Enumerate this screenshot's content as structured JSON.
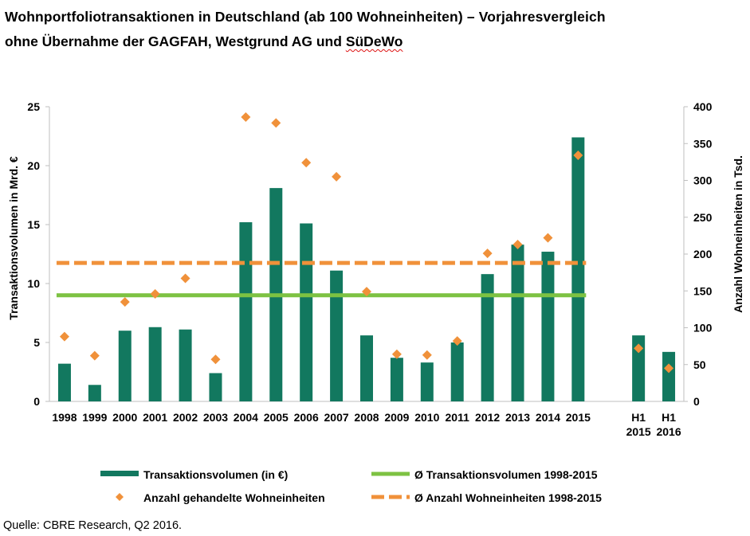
{
  "title": {
    "line1": "Wohnportfoliotransaktionen in Deutschland (ab 100 Wohneinheiten) – Vorjahresvergleich",
    "line2_prefix": "ohne Übernahme der GAGFAH, Westgrund AG und ",
    "line2_flagged": "SüDeWo"
  },
  "source": "Quelle: CBRE Research, Q2 2016.",
  "colors": {
    "bar": "#12785f",
    "avg_volume": "#7dc242",
    "marker": "#f0913a",
    "avg_units": "#f0913a",
    "axis": "#bfbfbf"
  },
  "chart_data": {
    "type": "bar",
    "categories": [
      [
        "1998"
      ],
      [
        "1999"
      ],
      [
        "2000"
      ],
      [
        "2001"
      ],
      [
        "2002"
      ],
      [
        "2003"
      ],
      [
        "2004"
      ],
      [
        "2005"
      ],
      [
        "2006"
      ],
      [
        "2007"
      ],
      [
        "2008"
      ],
      [
        "2009"
      ],
      [
        "2010"
      ],
      [
        "2011"
      ],
      [
        "2012"
      ],
      [
        "2013"
      ],
      [
        "2014"
      ],
      [
        "2015"
      ],
      [
        ""
      ],
      [
        "H1",
        "2015"
      ],
      [
        "H1",
        "2016"
      ]
    ],
    "ylabel": "Transaktionsvolumen in Mrd. €",
    "y2label": "Anzahl Wohneinheiten in Tsd.",
    "ylim": [
      0,
      25
    ],
    "y2lim": [
      0,
      400
    ],
    "yticks": [
      0,
      5,
      10,
      15,
      20,
      25
    ],
    "y2ticks": [
      0,
      50,
      100,
      150,
      200,
      250,
      300,
      350,
      400
    ],
    "series": [
      {
        "name": "Transaktionsvolumen (in €)",
        "type": "bar",
        "axis": "left",
        "values": [
          3.2,
          1.4,
          6.0,
          6.3,
          6.1,
          2.4,
          15.2,
          18.1,
          15.1,
          11.1,
          5.6,
          3.7,
          3.3,
          5.0,
          10.8,
          13.3,
          12.7,
          22.4,
          null,
          5.6,
          4.2
        ]
      },
      {
        "name": "Ø Transaktionsvolumen 1998-2015",
        "type": "hline",
        "axis": "left",
        "value": 9.0,
        "span": [
          "1998",
          "2015"
        ]
      },
      {
        "name": "Anzahl gehandelte Wohneinheiten",
        "type": "scatter",
        "axis": "right",
        "values": [
          88,
          62,
          135,
          146,
          167,
          57,
          386,
          378,
          324,
          305,
          149,
          64,
          63,
          82,
          201,
          213,
          222,
          334,
          null,
          72,
          45
        ]
      },
      {
        "name": "Ø Anzahl Wohneinheiten 1998-2015",
        "type": "hline-dashed",
        "axis": "right",
        "value": 188,
        "span": [
          "1998",
          "2015"
        ]
      }
    ],
    "legend_position": "bottom",
    "grid": false
  }
}
